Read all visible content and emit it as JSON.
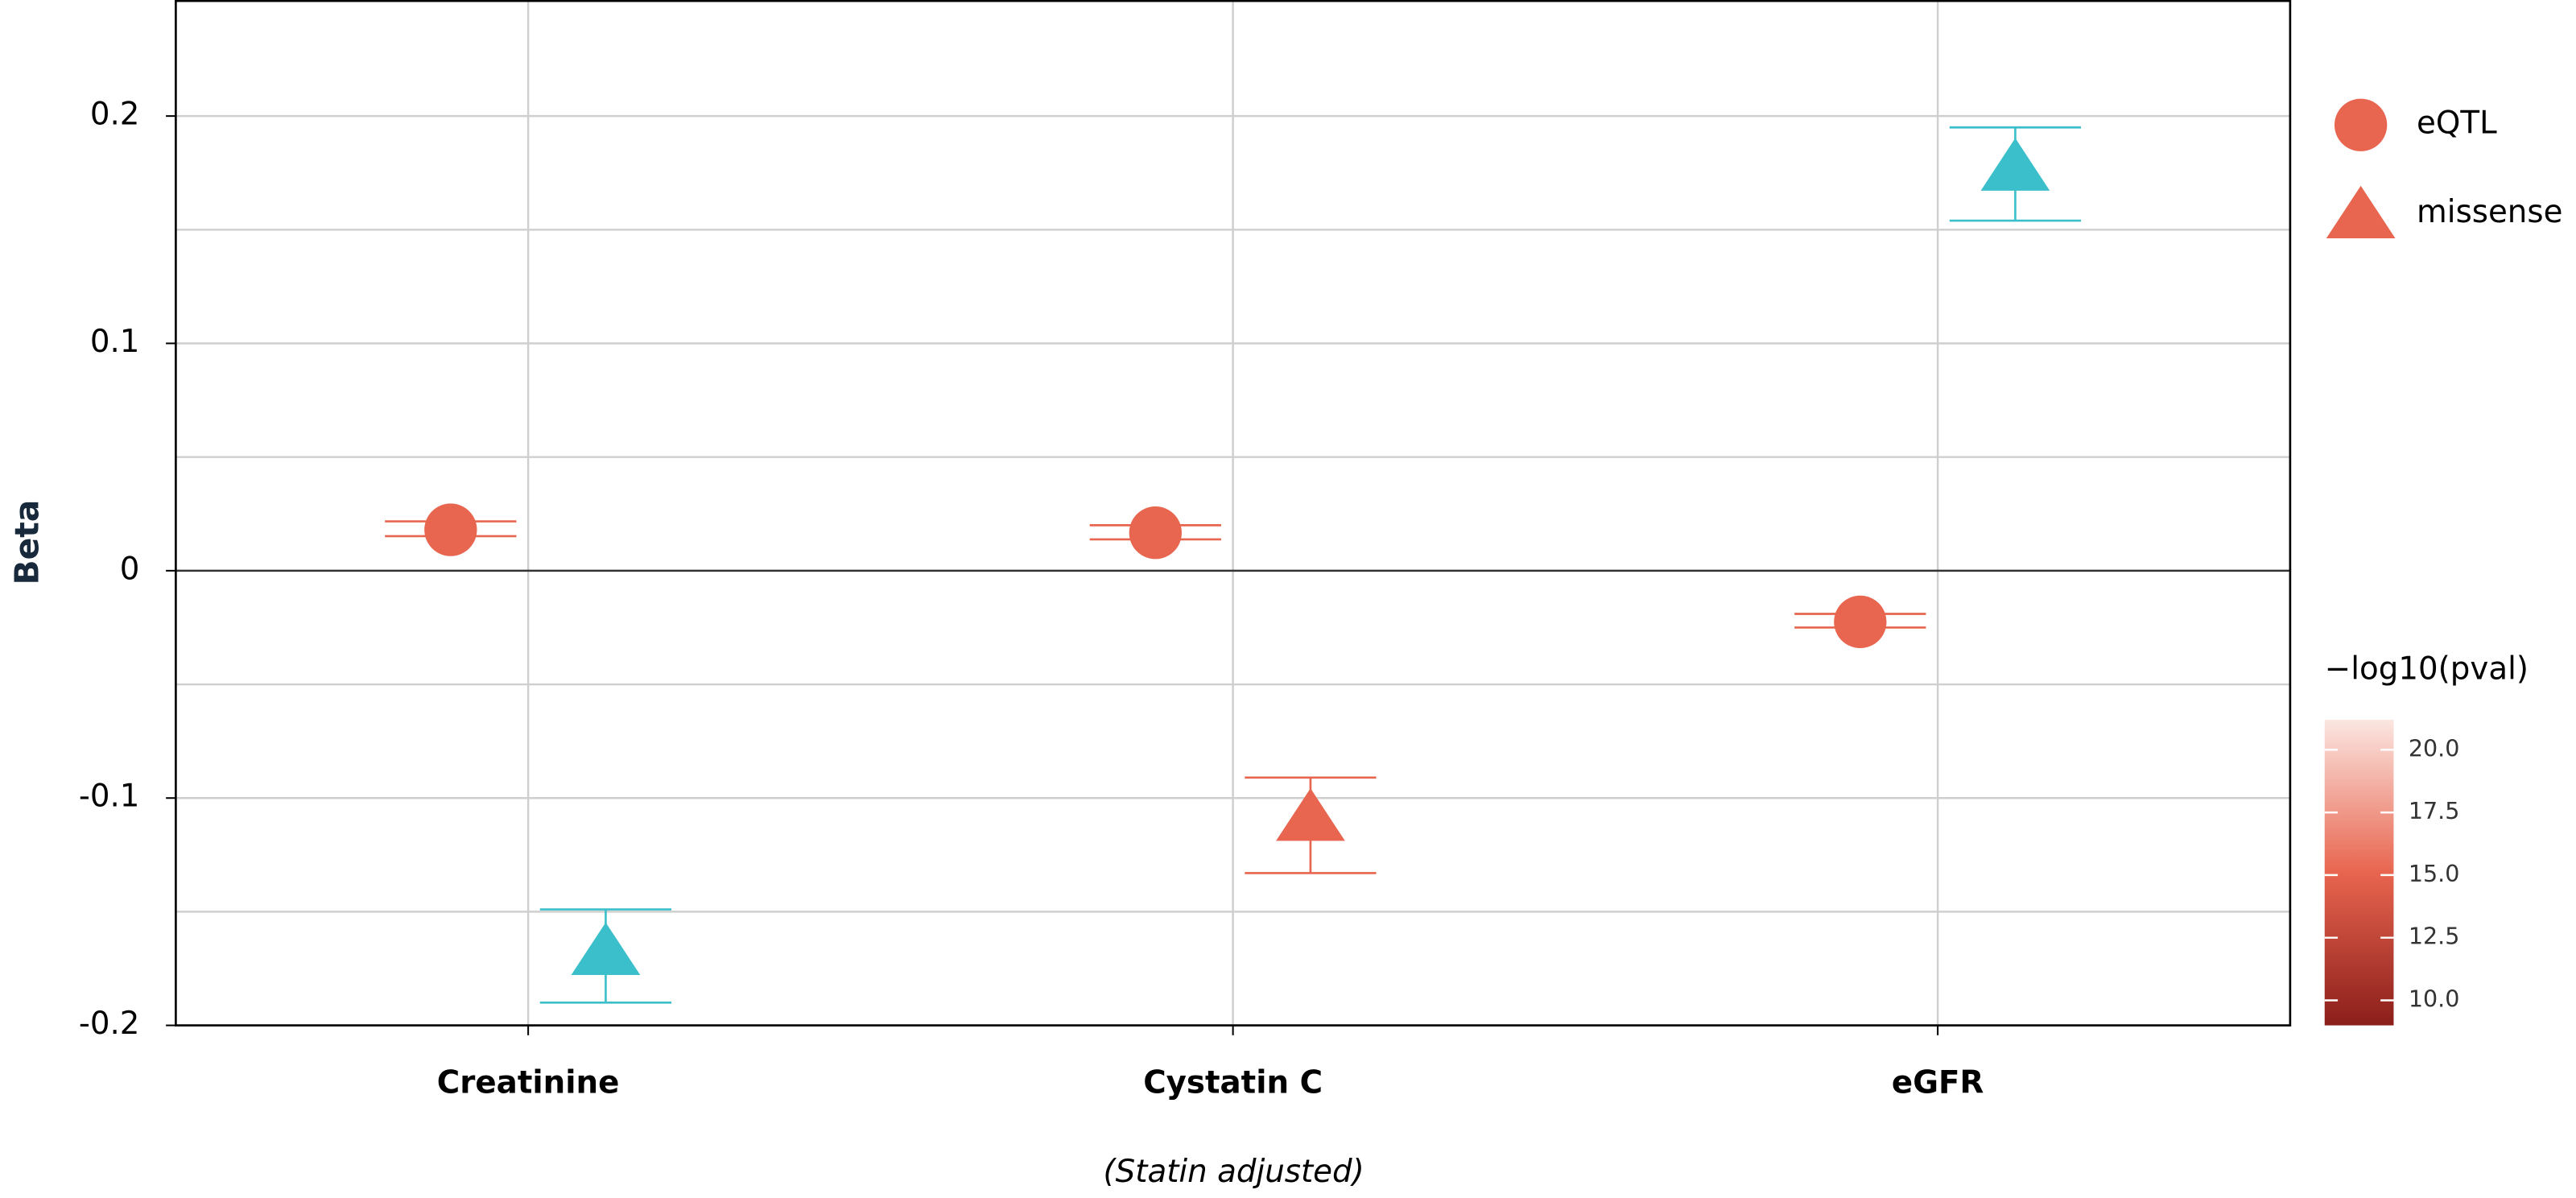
{
  "chart_data": {
    "type": "pointrange",
    "categories": [
      "Creatinine",
      "Cystatin C",
      "eGFR"
    ],
    "ylabel": "Beta",
    "xlabel": "(Statin adjusted)",
    "ylim": [
      -0.2,
      0.251
    ],
    "yticks": [
      0.2,
      0.1,
      0,
      -0.1,
      -0.2
    ],
    "minor_yticks": [
      0.15,
      0.05,
      -0.05,
      -0.15
    ],
    "grid": true,
    "legend_color": "#e8654f",
    "series": [
      {
        "name": "eQTL",
        "shape": "circle",
        "dodge": -0.11,
        "values": [
          0.018,
          0.0167,
          -0.0225
        ],
        "ci_low": [
          0.0152,
          0.0138,
          -0.025
        ],
        "ci_high": [
          0.0217,
          0.02,
          -0.019
        ],
        "colors": [
          "#e8654f",
          "#e8654f",
          "#e8654f"
        ]
      },
      {
        "name": "missense",
        "shape": "triangle",
        "dodge": 0.11,
        "values": [
          -0.167,
          -0.108,
          0.178
        ],
        "ci_low": [
          -0.19,
          -0.133,
          0.154
        ],
        "ci_high": [
          -0.149,
          -0.091,
          0.195
        ],
        "colors": [
          "#3bbfcb",
          "#e8654f",
          "#3bbfcb"
        ]
      }
    ],
    "colorbar": {
      "title": "−log10(pval)",
      "lim": [
        9,
        21.2
      ],
      "ticks": [
        {
          "value": 10,
          "label": "10.0"
        },
        12.5,
        {
          "value": 15,
          "label": "15.0"
        },
        17.5,
        {
          "value": 20,
          "label": "20.0"
        }
      ],
      "colors": [
        "#8b1e1a",
        "#e8654f",
        "#fbe6e1"
      ]
    }
  }
}
